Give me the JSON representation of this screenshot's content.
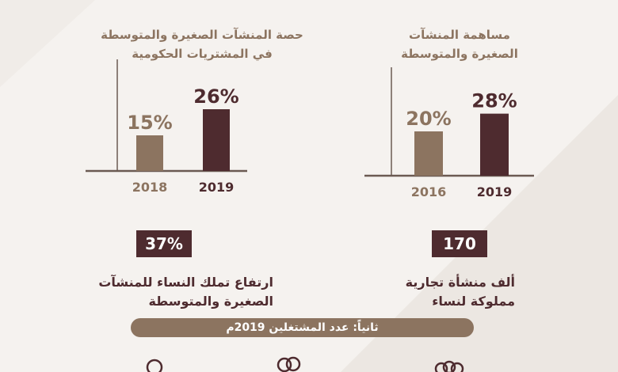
{
  "colors": {
    "background": "#f5f2ef",
    "primary": "#4e2b2f",
    "secondary": "#8c7460",
    "axis": "#6b5a52",
    "decor": "#e9e4df"
  },
  "chart_data": [
    {
      "type": "bar",
      "title": "حصة المنشآت الصغيرة والمتوسطة في المشتريات الحكومية",
      "title_lines": [
        "حصة المنشآت الصغيرة والمتوسطة",
        "في المشتريات الحكومية"
      ],
      "categories": [
        "2018",
        "2019"
      ],
      "values": [
        15,
        26
      ],
      "labels": [
        "15%",
        "26%"
      ],
      "colors": [
        "#8c7460",
        "#4e2b2f"
      ],
      "ylim": [
        0,
        30
      ],
      "xlabel": "",
      "ylabel": "",
      "grid": false
    },
    {
      "type": "bar",
      "title": "مساهمة المنشآت الصغيرة والمتوسطة",
      "title_lines": [
        "مساهمة المنشآت",
        "الصغيرة والمتوسطة"
      ],
      "categories": [
        "2016",
        "2019"
      ],
      "values": [
        20,
        28
      ],
      "labels": [
        "20%",
        "28%"
      ],
      "colors": [
        "#8c7460",
        "#4e2b2f"
      ],
      "ylim": [
        0,
        30
      ],
      "xlabel": "",
      "ylabel": "",
      "grid": false
    }
  ],
  "stats": [
    {
      "value": "37%",
      "caption_lines": [
        "ارتفاع تملك النساء للمنشآت",
        "الصغيرة والمتوسطة"
      ]
    },
    {
      "value": "170",
      "caption_lines": [
        "ألف منشأة تجارية",
        "مملوكة لنساء"
      ]
    }
  ],
  "section": {
    "heading": "ثانياً: عدد المشتغلين 2019م"
  },
  "icons": [
    "person-icon",
    "people-group-icon",
    "people-group-icon"
  ]
}
